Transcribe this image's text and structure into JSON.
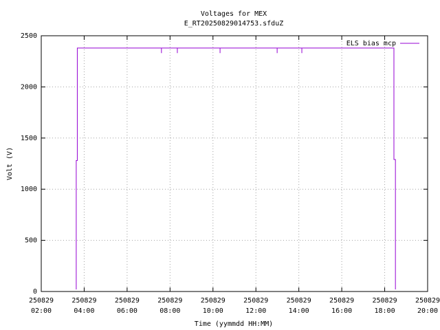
{
  "chart_data": {
    "type": "line",
    "title": "Voltages for MEX",
    "subtitle": "E_RT20250829014753.sfduZ",
    "x_label": "Time (yymmdd HH:MM)",
    "y_label": "Volt (V)",
    "x": [
      3.63,
      3.63,
      3.68,
      3.68,
      7.6,
      7.6,
      7.6,
      8.34,
      8.34,
      8.34,
      10.33,
      10.33,
      10.33,
      12.99,
      12.99,
      12.99,
      14.14,
      14.14,
      14.14,
      18.43,
      18.43,
      18.5,
      18.5
    ],
    "series": [
      {
        "name": "ELS bias mcp",
        "color": "#9400d3",
        "values": [
          20,
          1280,
          1280,
          2380,
          2380,
          2330,
          2380,
          2380,
          2330,
          2380,
          2380,
          2330,
          2380,
          2380,
          2330,
          2380,
          2380,
          2330,
          2380,
          2380,
          1290,
          1290,
          20
        ]
      }
    ],
    "xlim": [
      2,
      20
    ],
    "xticks": [
      {
        "value": 2,
        "label": "250829 02:00"
      },
      {
        "value": 4,
        "label": "250829 04:00"
      },
      {
        "value": 6,
        "label": "250829 06:00"
      },
      {
        "value": 8,
        "label": "250829 08:00"
      },
      {
        "value": 10,
        "label": "250829 10:00"
      },
      {
        "value": 12,
        "label": "250829 12:00"
      },
      {
        "value": 14,
        "label": "250829 14:00"
      },
      {
        "value": 16,
        "label": "250829 16:00"
      },
      {
        "value": 18,
        "label": "250829 18:00"
      },
      {
        "value": 20,
        "label": "250829 20:00"
      }
    ],
    "ylim": [
      0,
      2500
    ],
    "yticks": [
      0,
      500,
      1000,
      1500,
      2000,
      2500
    ],
    "grid": true,
    "legend": "top-right"
  }
}
